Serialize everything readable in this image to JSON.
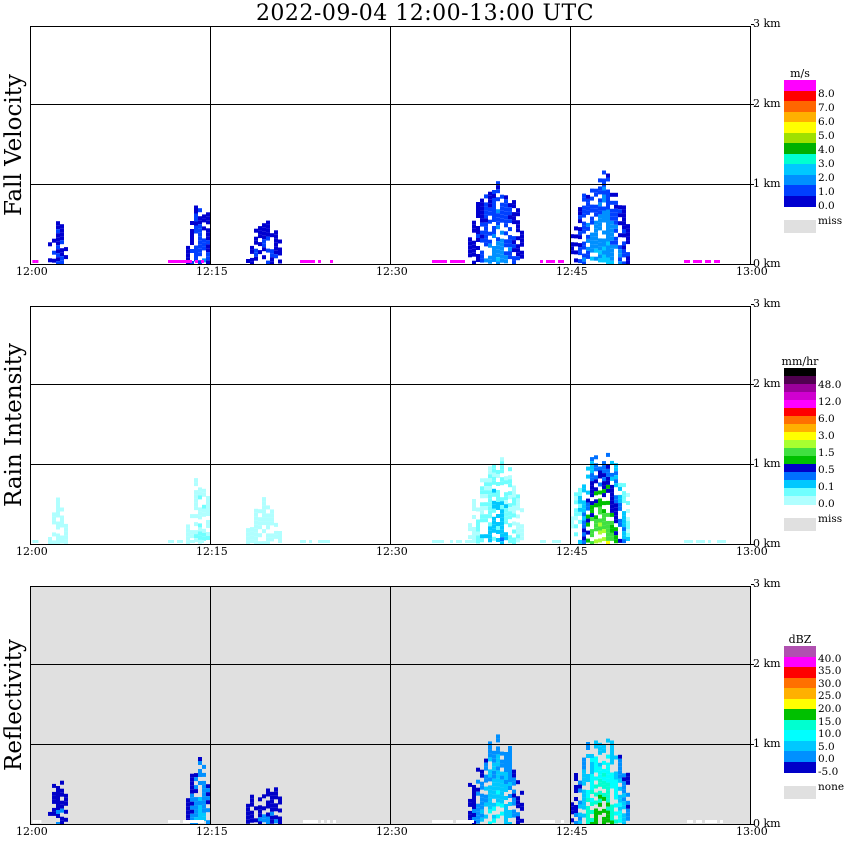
{
  "title": "2022-09-04   12:00-13:00 UTC",
  "x_ticks": [
    "12:00",
    "12:15",
    "12:30",
    "12:45",
    "13:00"
  ],
  "height_ticks": [
    "0 km",
    "1 km",
    "2 km",
    "3 km"
  ],
  "panels": [
    {
      "label": "Fall Velocity",
      "background": "#ffffff",
      "colorbar": {
        "unit": "m/s",
        "labels": [
          "8.0",
          "7.0",
          "6.0",
          "5.0",
          "4.0",
          "3.0",
          "2.0",
          "1.0",
          "0.0"
        ],
        "colors": [
          "#ff00ff",
          "#ff0000",
          "#ff6600",
          "#ffb000",
          "#ffff00",
          "#a0e000",
          "#00b000",
          "#00ffd0",
          "#00c8ff",
          "#0090ff",
          "#0040ff",
          "#0000d0"
        ],
        "miss_label": "miss",
        "miss_color": "#e0e0e0"
      }
    },
    {
      "label": "Rain Intensity",
      "background": "#ffffff",
      "colorbar": {
        "unit": "mm/hr",
        "labels": [
          "48.0",
          "12.0",
          "6.0",
          "3.0",
          "1.5",
          "0.5",
          "0.1",
          "0.0"
        ],
        "colors": [
          "#000000",
          "#500050",
          "#9a009a",
          "#d000d0",
          "#ff00ff",
          "#ff0000",
          "#ff7000",
          "#ffb000",
          "#ffff00",
          "#a8ff30",
          "#40e040",
          "#00c000",
          "#0000c8",
          "#0070ff",
          "#00c8ff",
          "#70ffff",
          "#b0ffff"
        ],
        "miss_label": "miss",
        "miss_color": "#e0e0e0"
      }
    },
    {
      "label": "Reflectivity",
      "background": "#e0e0e0",
      "colorbar": {
        "unit": "dBZ",
        "labels": [
          "40.0",
          "35.0",
          "30.0",
          "25.0",
          "20.0",
          "15.0",
          "10.0",
          "5.0",
          "0.0",
          "-5.0"
        ],
        "colors": [
          "#b050b0",
          "#ff00ff",
          "#ff0000",
          "#ff7000",
          "#ffb000",
          "#ffff00",
          "#00c000",
          "#00ffd0",
          "#00ffff",
          "#00c8ff",
          "#0090ff",
          "#0000c8"
        ],
        "miss_label": "none",
        "miss_color": "#e0e0e0"
      }
    }
  ],
  "chart_data": {
    "type": "heatmap",
    "x_unit": "minutes after 12:00 UTC",
    "xlim": [
      0,
      60
    ],
    "ylim_km": [
      0,
      3.0
    ],
    "echo_cells": [
      {
        "t_start": 1.5,
        "t_end": 3.0,
        "top_km": 0.65,
        "peak_fall_velocity_ms": 1.0,
        "peak_rain_mmhr": 0.1,
        "peak_dbz": 0.0
      },
      {
        "t_start": 13.0,
        "t_end": 15.0,
        "top_km": 0.9,
        "peak_fall_velocity_ms": 1.5,
        "peak_rain_mmhr": 0.5,
        "peak_dbz": 5.0
      },
      {
        "t_start": 18.0,
        "t_end": 21.0,
        "top_km": 0.6,
        "peak_fall_velocity_ms": 1.0,
        "peak_rain_mmhr": 0.1,
        "peak_dbz": 0.0
      },
      {
        "t_start": 36.5,
        "t_end": 41.0,
        "top_km": 1.15,
        "peak_fall_velocity_ms": 2.0,
        "peak_rain_mmhr": 1.0,
        "peak_dbz": 10.0
      },
      {
        "t_start": 45.0,
        "t_end": 50.0,
        "top_km": 1.2,
        "peak_fall_velocity_ms": 2.5,
        "peak_rain_mmhr": 3.0,
        "peak_dbz": 20.0
      }
    ]
  }
}
